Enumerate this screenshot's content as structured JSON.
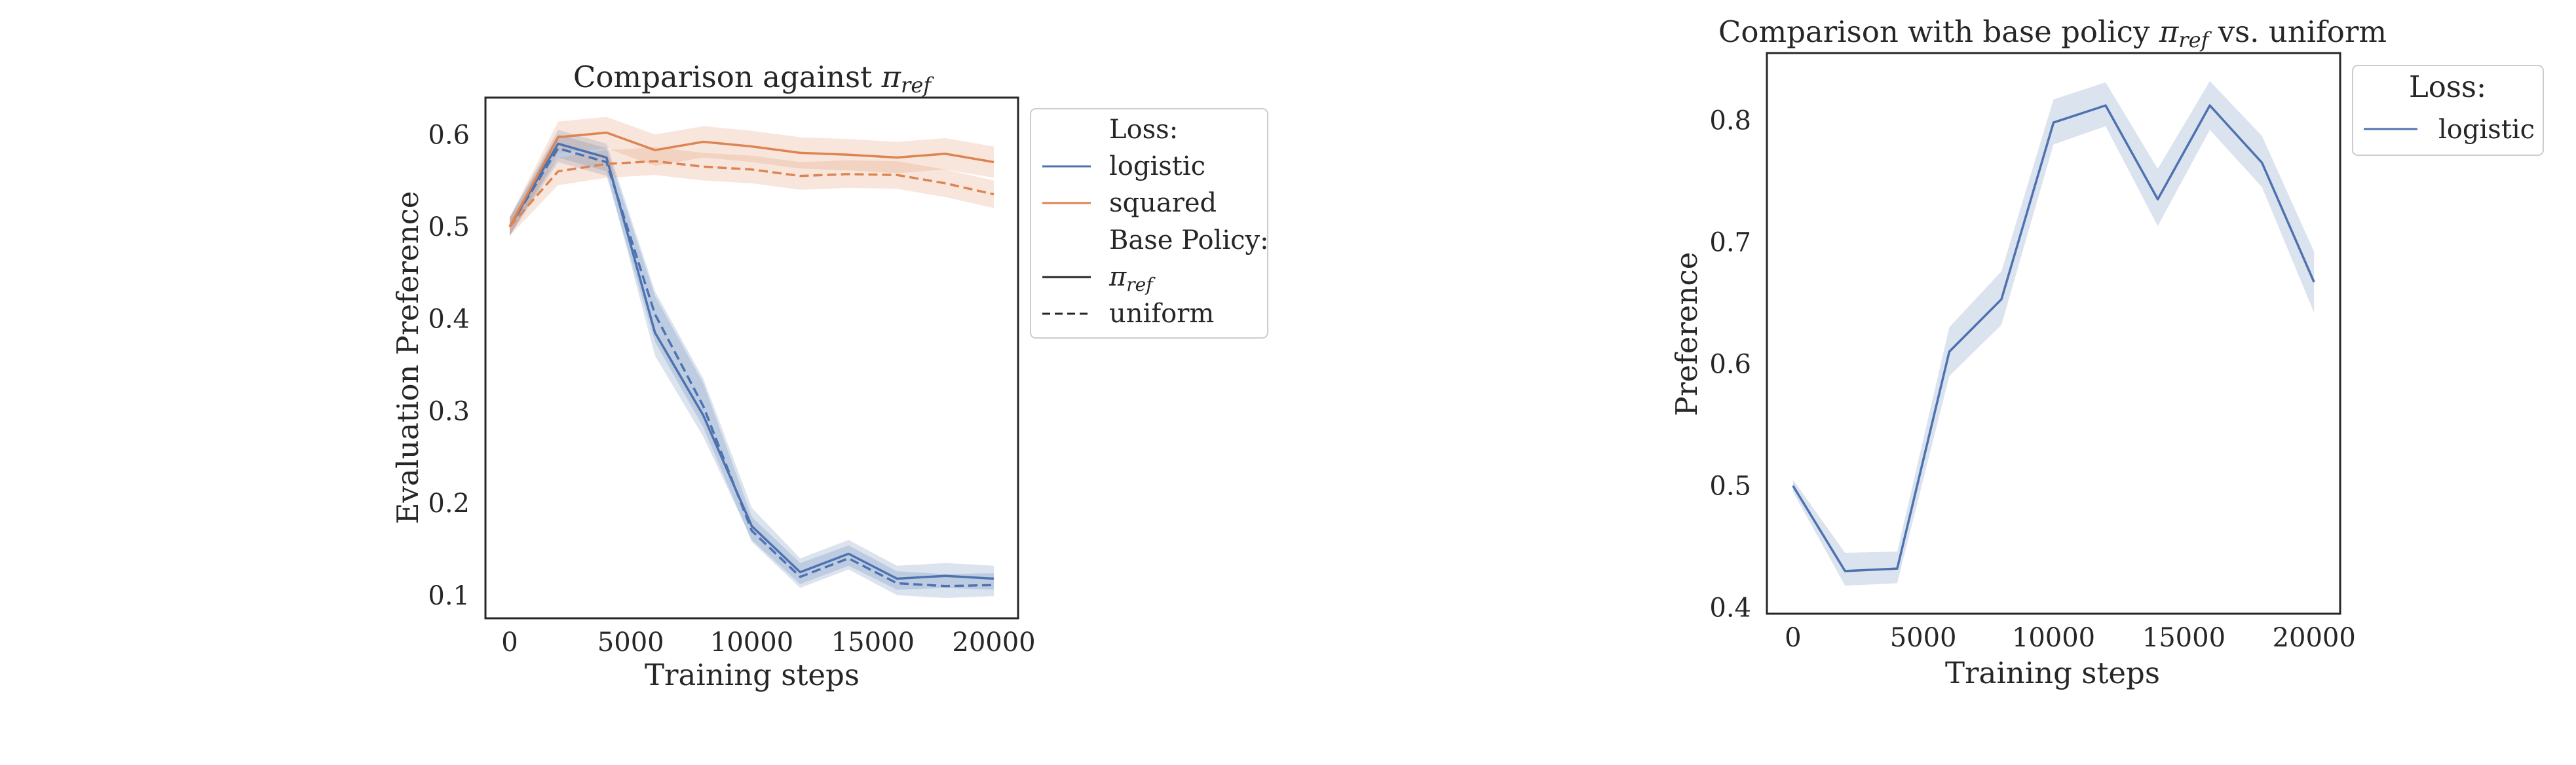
{
  "chart_data": [
    {
      "type": "line",
      "title": "Comparison against π_ref",
      "title_text": "Comparison against ",
      "title_symbol": "π",
      "title_subscript": "ref",
      "xlabel": "Training steps",
      "ylabel": "Evaluation Preference",
      "xlim": [
        -1000,
        21000
      ],
      "ylim": [
        0.075,
        0.64
      ],
      "xticks": [
        0,
        5000,
        10000,
        15000,
        20000
      ],
      "yticks": [
        0.1,
        0.2,
        0.3,
        0.4,
        0.5,
        0.6
      ],
      "xtick_labels": [
        "0",
        "5000",
        "10000",
        "15000",
        "20000"
      ],
      "ytick_labels": [
        "0.1",
        "0.2",
        "0.3",
        "0.4",
        "0.5",
        "0.6"
      ],
      "grid": false,
      "x": [
        0,
        2000,
        4000,
        6000,
        8000,
        10000,
        12000,
        14000,
        16000,
        18000,
        20000
      ],
      "series": [
        {
          "name": "logistic / π_ref",
          "loss": "logistic",
          "base": "pi_ref",
          "color": "#4c72b0",
          "dash": "solid",
          "values": [
            0.5,
            0.59,
            0.575,
            0.385,
            0.295,
            0.175,
            0.125,
            0.145,
            0.118,
            0.121,
            0.118
          ],
          "lower": [
            0.49,
            0.575,
            0.56,
            0.36,
            0.272,
            0.16,
            0.112,
            0.132,
            0.106,
            0.108,
            0.106
          ],
          "upper": [
            0.51,
            0.605,
            0.59,
            0.43,
            0.335,
            0.195,
            0.14,
            0.16,
            0.132,
            0.135,
            0.132
          ]
        },
        {
          "name": "logistic / uniform",
          "loss": "logistic",
          "base": "uniform",
          "color": "#4c72b0",
          "dash": "dashed",
          "values": [
            0.5,
            0.585,
            0.57,
            0.405,
            0.305,
            0.17,
            0.12,
            0.14,
            0.113,
            0.11,
            0.111
          ],
          "lower": [
            0.49,
            0.57,
            0.555,
            0.375,
            0.282,
            0.158,
            0.108,
            0.128,
            0.1,
            0.097,
            0.099
          ],
          "upper": [
            0.51,
            0.6,
            0.585,
            0.425,
            0.33,
            0.185,
            0.135,
            0.154,
            0.126,
            0.123,
            0.124
          ]
        },
        {
          "name": "squared / π_ref",
          "loss": "squared",
          "base": "pi_ref",
          "color": "#dd8452",
          "dash": "solid",
          "values": [
            0.5,
            0.597,
            0.602,
            0.583,
            0.592,
            0.587,
            0.58,
            0.578,
            0.575,
            0.579,
            0.57
          ],
          "lower": [
            0.49,
            0.58,
            0.585,
            0.566,
            0.575,
            0.57,
            0.563,
            0.561,
            0.558,
            0.562,
            0.553
          ],
          "upper": [
            0.51,
            0.614,
            0.619,
            0.6,
            0.609,
            0.604,
            0.597,
            0.595,
            0.592,
            0.596,
            0.587
          ]
        },
        {
          "name": "squared / uniform",
          "loss": "squared",
          "base": "uniform",
          "color": "#dd8452",
          "dash": "dashed",
          "values": [
            0.5,
            0.56,
            0.568,
            0.571,
            0.565,
            0.562,
            0.555,
            0.557,
            0.556,
            0.547,
            0.535
          ],
          "lower": [
            0.49,
            0.545,
            0.553,
            0.556,
            0.55,
            0.547,
            0.54,
            0.542,
            0.541,
            0.532,
            0.52
          ],
          "upper": [
            0.51,
            0.575,
            0.583,
            0.586,
            0.58,
            0.577,
            0.57,
            0.572,
            0.571,
            0.562,
            0.55
          ]
        }
      ],
      "legend": {
        "position": "outside-right",
        "loss_title": "Loss:",
        "loss_entries": [
          {
            "label": "logistic",
            "color": "#4c72b0"
          },
          {
            "label": "squared",
            "color": "#dd8452"
          }
        ],
        "base_title": "Base Policy:",
        "base_entries": [
          {
            "label_symbol": "π",
            "label_subscript": "ref",
            "dash": "solid"
          },
          {
            "label": "uniform",
            "dash": "dashed"
          }
        ]
      }
    },
    {
      "type": "line",
      "title": "Comparison with base policy π_ref vs. uniform",
      "title_text_before": "Comparison with base policy ",
      "title_symbol": "π",
      "title_subscript": "ref",
      "title_text_after": " vs. uniform",
      "xlabel": "Training steps",
      "ylabel": "Preference",
      "xlim": [
        -1000,
        21000
      ],
      "ylim": [
        0.395,
        0.855
      ],
      "xticks": [
        0,
        5000,
        10000,
        15000,
        20000
      ],
      "yticks": [
        0.4,
        0.5,
        0.6,
        0.7,
        0.8
      ],
      "xtick_labels": [
        "0",
        "5000",
        "10000",
        "15000",
        "20000"
      ],
      "ytick_labels": [
        "0.4",
        "0.5",
        "0.6",
        "0.7",
        "0.8"
      ],
      "grid": false,
      "x": [
        0,
        2000,
        4000,
        6000,
        8000,
        10000,
        12000,
        14000,
        16000,
        18000,
        20000
      ],
      "series": [
        {
          "name": "logistic",
          "color": "#4c72b0",
          "dash": "solid",
          "values": [
            0.5,
            0.43,
            0.432,
            0.61,
            0.653,
            0.798,
            0.812,
            0.735,
            0.812,
            0.765,
            0.667
          ],
          "lower": [
            0.495,
            0.418,
            0.42,
            0.59,
            0.632,
            0.78,
            0.795,
            0.713,
            0.792,
            0.745,
            0.642
          ],
          "upper": [
            0.505,
            0.445,
            0.446,
            0.63,
            0.676,
            0.817,
            0.831,
            0.76,
            0.832,
            0.787,
            0.692
          ]
        }
      ],
      "legend": {
        "position": "outside-right",
        "title": "Loss:",
        "entries": [
          {
            "label": "logistic",
            "color": "#4c72b0"
          }
        ]
      }
    }
  ]
}
